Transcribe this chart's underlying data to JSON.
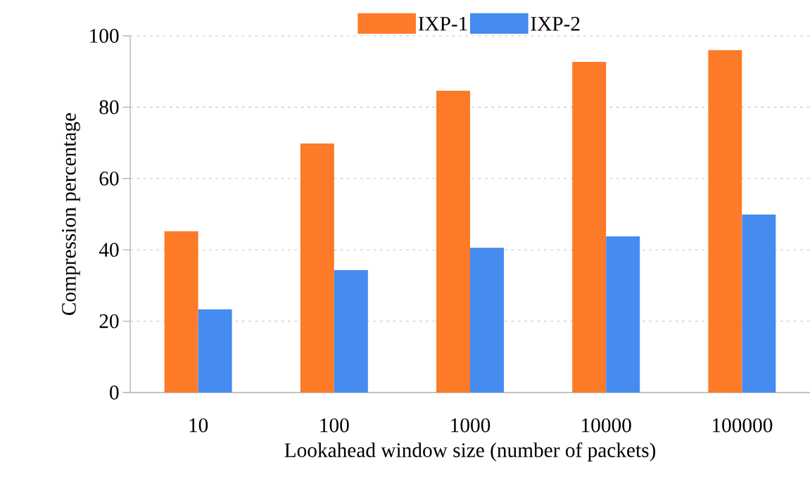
{
  "chart_data": {
    "type": "bar",
    "xlabel": "Lookahead window size (number of packets)",
    "ylabel": "Compression percentage",
    "categories": [
      "10",
      "100",
      "1000",
      "10000",
      "100000"
    ],
    "series": [
      {
        "name": "IXP-1",
        "color": "#fd7a28",
        "values": [
          45.2,
          69.8,
          84.6,
          92.7,
          96
        ]
      },
      {
        "name": "IXP-2",
        "color": "#458bf0",
        "values": [
          23.3,
          34.3,
          40.6,
          43.8,
          49.9
        ]
      }
    ],
    "ylim": [
      0,
      100
    ],
    "yticks": [
      0,
      20,
      40,
      60,
      80,
      100
    ],
    "grid": "y",
    "legend": "top"
  }
}
